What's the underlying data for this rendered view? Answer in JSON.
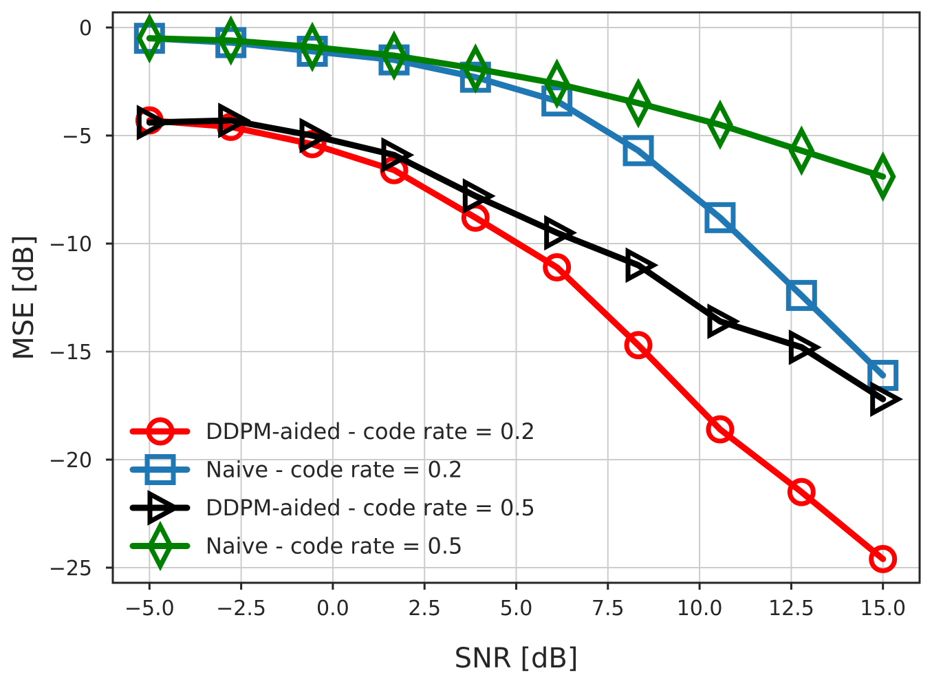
{
  "chart_data": {
    "type": "line",
    "title": "",
    "xlabel": "SNR [dB]",
    "ylabel": "MSE [dB]",
    "xlim": [
      -6.0,
      16.0
    ],
    "ylim": [
      -25.7,
      0.7
    ],
    "xticks": [
      -5.0,
      -2.5,
      0.0,
      2.5,
      5.0,
      7.5,
      10.0,
      12.5,
      15.0
    ],
    "xtick_labels": [
      "−5.0",
      "−2.5",
      "0.0",
      "2.5",
      "5.0",
      "7.5",
      "10.0",
      "12.5",
      "15.0"
    ],
    "yticks": [
      0,
      -5,
      -10,
      -15,
      -20,
      -25
    ],
    "ytick_labels": [
      "0",
      "−5",
      "−10",
      "−15",
      "−20",
      "−25"
    ],
    "grid": true,
    "legend_position": "lower-left",
    "x": [
      -5.0,
      -2.78,
      -0.56,
      1.67,
      3.89,
      6.11,
      8.33,
      10.56,
      12.78,
      15.0
    ],
    "series": [
      {
        "name": "DDPM-aided - code rate = 0.2",
        "color": "#ff0000",
        "marker": "circle",
        "values": [
          -4.3,
          -4.6,
          -5.4,
          -6.6,
          -8.8,
          -11.1,
          -14.7,
          -18.6,
          -21.5,
          -24.6
        ]
      },
      {
        "name": "Naive - code rate = 0.2",
        "color": "#1f77b4",
        "marker": "square",
        "values": [
          -0.5,
          -0.7,
          -1.1,
          -1.5,
          -2.3,
          -3.4,
          -5.7,
          -8.8,
          -12.4,
          -16.1
        ]
      },
      {
        "name": "DDPM-aided - code rate = 0.5",
        "color": "#000000",
        "marker": "triangle-right",
        "values": [
          -4.4,
          -4.3,
          -5.0,
          -5.9,
          -7.8,
          -9.5,
          -11.0,
          -13.6,
          -14.8,
          -17.2
        ]
      },
      {
        "name": "Naive - code rate = 0.5",
        "color": "#008000",
        "marker": "diamond",
        "values": [
          -0.5,
          -0.6,
          -0.9,
          -1.3,
          -1.9,
          -2.6,
          -3.5,
          -4.5,
          -5.7,
          -6.9
        ]
      }
    ]
  }
}
